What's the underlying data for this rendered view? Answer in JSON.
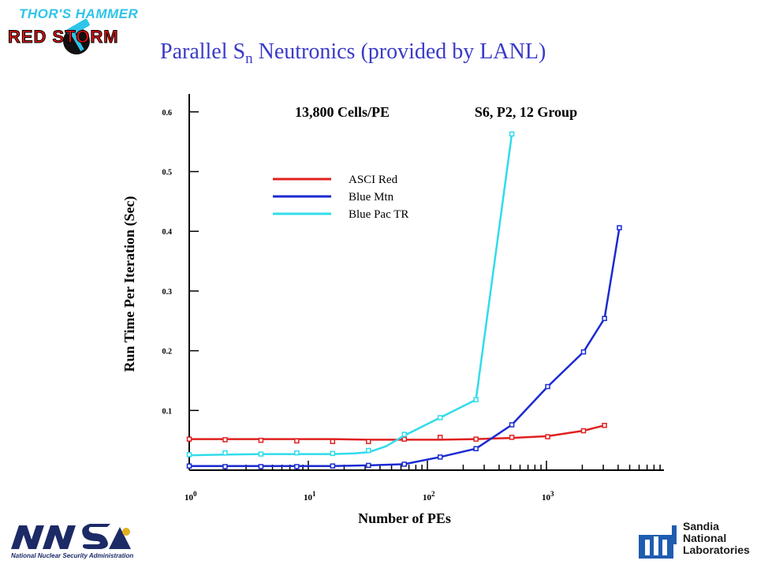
{
  "header": {
    "logo_top_text": "THOR'S HAMMER",
    "logo_bottom_text": "RED STORM",
    "title_main": "Parallel S",
    "title_sub": "n",
    "title_rest": " Neutronics (provided by LANL)"
  },
  "footer": {
    "nnsa_caption": "National Nuclear Security Administration",
    "sandia_line1": "Sandia",
    "sandia_line2": "National",
    "sandia_line3": "Laboratories"
  },
  "colors": {
    "title": "#3a3ac8",
    "asci_red": "#e02020",
    "blue_mtn": "#1a2ad0",
    "blue_pac": "#30dcea",
    "logo_cyan": "#2ec4e8",
    "logo_red": "#e01010"
  },
  "chart_data": {
    "type": "line",
    "annotations": [
      "13,800 Cells/PE",
      "S6, P2, 12 Group"
    ],
    "xlabel": "Number of PEs",
    "ylabel": "Run Time Per Iteration (Sec)",
    "x_scale": "log",
    "xlim": [
      1,
      10000
    ],
    "ylim": [
      0,
      0.63
    ],
    "x_ticks": [
      {
        "value": 1,
        "base": "10",
        "exp": "0"
      },
      {
        "value": 10,
        "base": "10",
        "exp": "1"
      },
      {
        "value": 100,
        "base": "10",
        "exp": "2"
      },
      {
        "value": 1000,
        "base": "10",
        "exp": "3"
      }
    ],
    "y_ticks": [
      {
        "value": 0.1,
        "label": "0.1"
      },
      {
        "value": 0.2,
        "label": "0.2"
      },
      {
        "value": 0.3,
        "label": "0.3"
      },
      {
        "value": 0.4,
        "label": "0.4"
      },
      {
        "value": 0.5,
        "label": "0.5"
      },
      {
        "value": 0.6,
        "label": "0.6"
      }
    ],
    "legend_position": "upper-middle",
    "series": [
      {
        "name": "ASCI Red",
        "color": "#e02020",
        "points": [
          [
            1,
            0.052
          ],
          [
            2,
            0.051
          ],
          [
            4,
            0.05
          ],
          [
            8,
            0.049
          ],
          [
            16,
            0.048
          ],
          [
            32,
            0.048
          ],
          [
            64,
            0.052
          ],
          [
            128,
            0.055
          ],
          [
            256,
            0.052
          ],
          [
            512,
            0.055
          ],
          [
            1024,
            0.056
          ],
          [
            2048,
            0.066
          ],
          [
            3072,
            0.075
          ]
        ],
        "curve": [
          [
            1,
            0.052
          ],
          [
            2,
            0.052
          ],
          [
            4,
            0.052
          ],
          [
            8,
            0.052
          ],
          [
            16,
            0.052
          ],
          [
            32,
            0.051
          ],
          [
            64,
            0.051
          ],
          [
            128,
            0.051
          ],
          [
            256,
            0.052
          ],
          [
            512,
            0.054
          ],
          [
            1024,
            0.057
          ],
          [
            2048,
            0.066
          ],
          [
            3072,
            0.075
          ]
        ]
      },
      {
        "name": "Blue Mtn",
        "color": "#1a2ad0",
        "points": [
          [
            1,
            0.007
          ],
          [
            2,
            0.006
          ],
          [
            4,
            0.006
          ],
          [
            8,
            0.006
          ],
          [
            16,
            0.007
          ],
          [
            32,
            0.008
          ],
          [
            64,
            0.01
          ],
          [
            128,
            0.022
          ],
          [
            256,
            0.036
          ],
          [
            512,
            0.076
          ],
          [
            1024,
            0.14
          ],
          [
            2048,
            0.198
          ],
          [
            3072,
            0.254
          ],
          [
            4096,
            0.406
          ]
        ],
        "curve": [
          [
            1,
            0.007
          ],
          [
            2,
            0.007
          ],
          [
            4,
            0.007
          ],
          [
            8,
            0.007
          ],
          [
            16,
            0.007
          ],
          [
            32,
            0.008
          ],
          [
            64,
            0.01
          ],
          [
            128,
            0.022
          ],
          [
            256,
            0.036
          ],
          [
            512,
            0.076
          ],
          [
            1024,
            0.14
          ],
          [
            2048,
            0.198
          ],
          [
            3072,
            0.254
          ],
          [
            4096,
            0.406
          ]
        ]
      },
      {
        "name": "Blue Pac TR",
        "color": "#30dcea",
        "points": [
          [
            1,
            0.026
          ],
          [
            2,
            0.029
          ],
          [
            4,
            0.027
          ],
          [
            8,
            0.029
          ],
          [
            16,
            0.028
          ],
          [
            32,
            0.033
          ],
          [
            64,
            0.06
          ],
          [
            128,
            0.088
          ],
          [
            256,
            0.118
          ],
          [
            512,
            0.563
          ]
        ],
        "curve": [
          [
            1,
            0.025
          ],
          [
            2,
            0.026
          ],
          [
            4,
            0.027
          ],
          [
            8,
            0.027
          ],
          [
            16,
            0.027
          ],
          [
            24,
            0.028
          ],
          [
            32,
            0.03
          ],
          [
            45,
            0.04
          ],
          [
            64,
            0.058
          ],
          [
            128,
            0.088
          ],
          [
            256,
            0.118
          ],
          [
            512,
            0.563
          ]
        ]
      }
    ]
  }
}
